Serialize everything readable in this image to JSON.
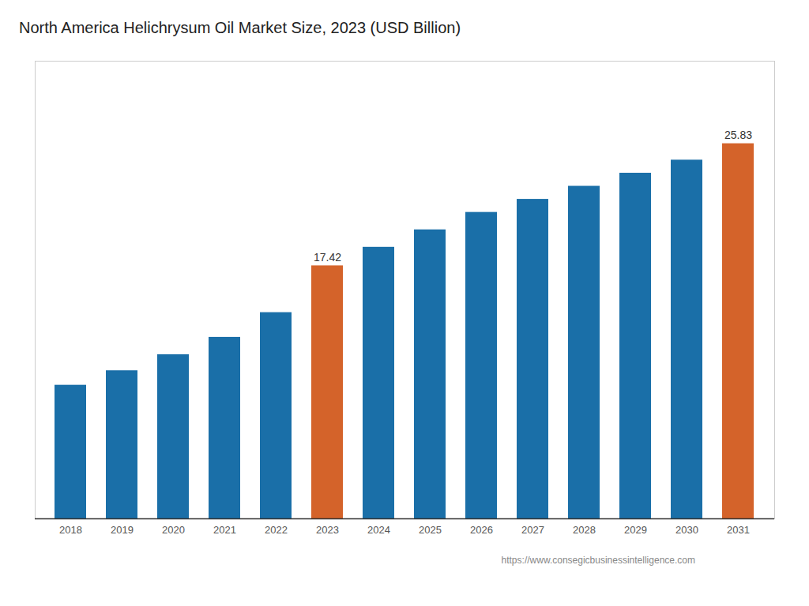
{
  "chart_data": {
    "type": "bar",
    "title": "North America Helichrysum Oil Market Size, 2023 (USD Billion)",
    "categories": [
      "2018",
      "2019",
      "2020",
      "2021",
      "2022",
      "2023",
      "2024",
      "2025",
      "2026",
      "2027",
      "2028",
      "2029",
      "2030",
      "2031"
    ],
    "values": [
      9.2,
      10.2,
      11.3,
      12.5,
      14.2,
      17.42,
      18.7,
      19.9,
      21.1,
      22.0,
      22.9,
      23.8,
      24.7,
      25.83
    ],
    "value_labels": [
      null,
      null,
      null,
      null,
      null,
      "17.42",
      null,
      null,
      null,
      null,
      null,
      null,
      null,
      "25.83"
    ],
    "colors": [
      "#1a6fa8",
      "#1a6fa8",
      "#1a6fa8",
      "#1a6fa8",
      "#1a6fa8",
      "#d4632a",
      "#1a6fa8",
      "#1a6fa8",
      "#1a6fa8",
      "#1a6fa8",
      "#1a6fa8",
      "#1a6fa8",
      "#1a6fa8",
      "#d4632a"
    ],
    "ylim": [
      0,
      31.5126
    ],
    "tick_labels": "x",
    "grid": false,
    "annotations": [
      "https://www.consegicbusinessintelligence.com"
    ]
  }
}
